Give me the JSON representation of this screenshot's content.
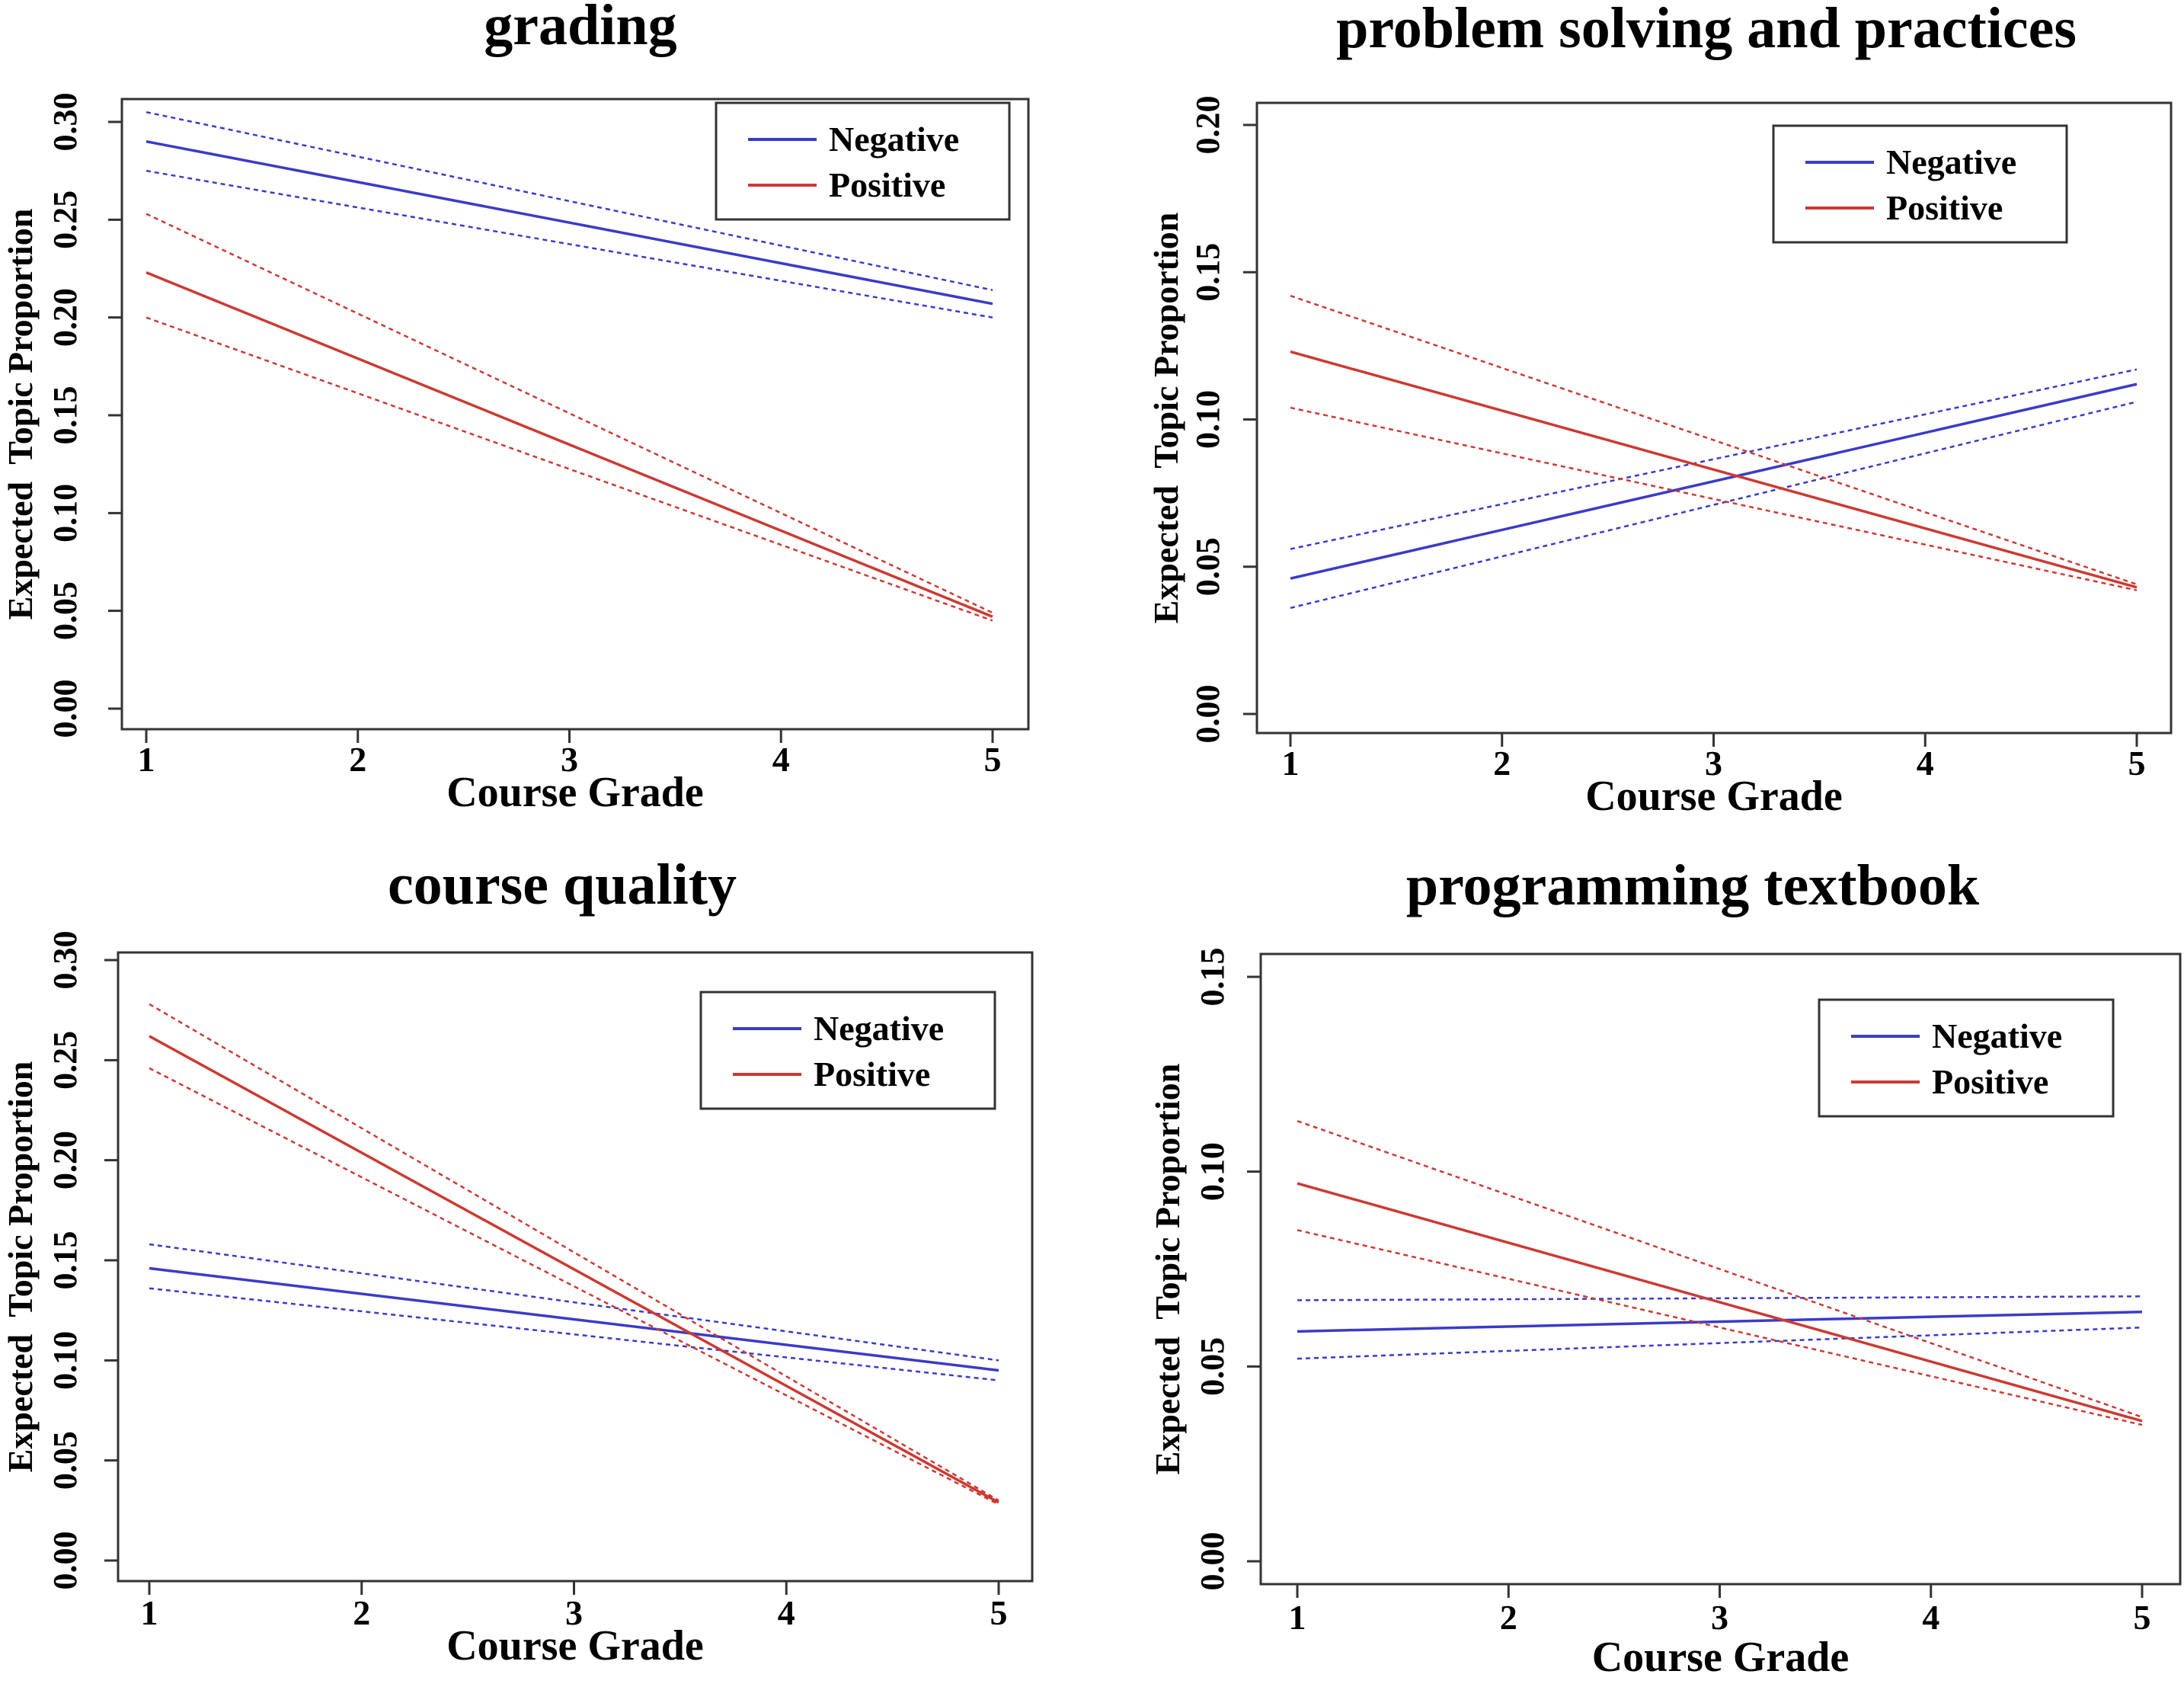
{
  "colors": {
    "negative": "#3b3bc8",
    "positive": "#cc3a33",
    "axis": "#333333"
  },
  "chart_data": [
    {
      "type": "line",
      "title": "grading",
      "xlabel": "Course Grade",
      "ylabel": "Expected  Topic Proportion",
      "x": [
        1,
        5
      ],
      "xticks": [
        "1",
        "2",
        "3",
        "4",
        "5"
      ],
      "yticks": [
        "0.00",
        "0.05",
        "0.10",
        "0.15",
        "0.20",
        "0.25",
        "0.30"
      ],
      "ylim": [
        0,
        0.3
      ],
      "legend": "top-right",
      "series": [
        {
          "name": "Negative",
          "values": [
            0.29,
            0.207
          ],
          "lower": [
            0.275,
            0.2
          ],
          "upper": [
            0.305,
            0.214
          ]
        },
        {
          "name": "Positive",
          "values": [
            0.223,
            0.047
          ],
          "lower": [
            0.2,
            0.045
          ],
          "upper": [
            0.253,
            0.049
          ]
        }
      ]
    },
    {
      "type": "line",
      "title": "problem solving and practices",
      "xlabel": "Course Grade",
      "ylabel": "Expected  Topic Proportion",
      "x": [
        1,
        5
      ],
      "xticks": [
        "1",
        "2",
        "3",
        "4",
        "5"
      ],
      "yticks": [
        "0.00",
        "0.05",
        "0.10",
        "0.15",
        "0.20"
      ],
      "ylim": [
        0,
        0.2
      ],
      "legend": "top-right",
      "series": [
        {
          "name": "Negative",
          "values": [
            0.046,
            0.112
          ],
          "lower": [
            0.036,
            0.106
          ],
          "upper": [
            0.056,
            0.117
          ]
        },
        {
          "name": "Positive",
          "values": [
            0.123,
            0.043
          ],
          "lower": [
            0.104,
            0.042
          ],
          "upper": [
            0.142,
            0.044
          ]
        }
      ]
    },
    {
      "type": "line",
      "title": "course quality",
      "xlabel": "Course Grade",
      "ylabel": "Expected  Topic Proportion",
      "x": [
        1,
        5
      ],
      "xticks": [
        "1",
        "2",
        "3",
        "4",
        "5"
      ],
      "yticks": [
        "0.00",
        "0.05",
        "0.10",
        "0.15",
        "0.20",
        "0.25",
        "0.30"
      ],
      "ylim": [
        0,
        0.3
      ],
      "legend": "top-right",
      "series": [
        {
          "name": "Negative",
          "values": [
            0.146,
            0.095
          ],
          "lower": [
            0.136,
            0.09
          ],
          "upper": [
            0.158,
            0.1
          ]
        },
        {
          "name": "Positive",
          "values": [
            0.262,
            0.029
          ],
          "lower": [
            0.246,
            0.028
          ],
          "upper": [
            0.278,
            0.03
          ]
        }
      ]
    },
    {
      "type": "line",
      "title": "programming textbook",
      "xlabel": "Course Grade",
      "ylabel": "Expected  Topic Proportion",
      "x": [
        1,
        5
      ],
      "xticks": [
        "1",
        "2",
        "3",
        "4",
        "5"
      ],
      "yticks": [
        "0.00",
        "0.05",
        "0.10",
        "0.15"
      ],
      "ylim": [
        0,
        0.15
      ],
      "legend": "top-right",
      "series": [
        {
          "name": "Negative",
          "values": [
            0.059,
            0.064
          ],
          "lower": [
            0.052,
            0.06
          ],
          "upper": [
            0.067,
            0.068
          ]
        },
        {
          "name": "Positive",
          "values": [
            0.097,
            0.036
          ],
          "lower": [
            0.085,
            0.035
          ],
          "upper": [
            0.113,
            0.037
          ]
        }
      ]
    }
  ]
}
